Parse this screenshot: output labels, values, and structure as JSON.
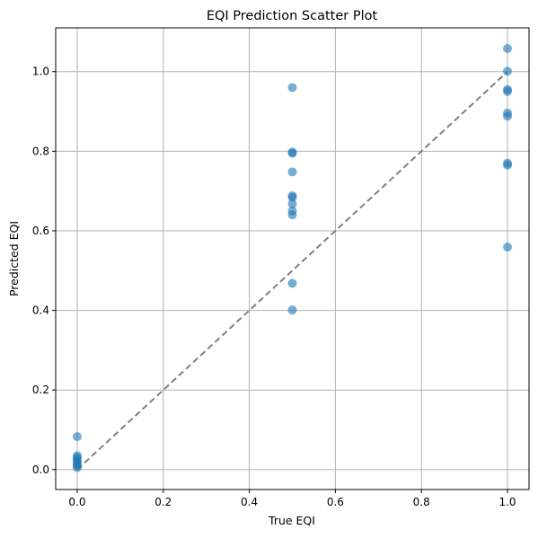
{
  "chart_data": {
    "type": "scatter",
    "title": "EQI Prediction Scatter Plot",
    "xlabel": "True EQI",
    "ylabel": "Predicted EQI",
    "xlim": [
      -0.05,
      1.05
    ],
    "ylim": [
      -0.05,
      1.11
    ],
    "xticks": [
      0.0,
      0.2,
      0.4,
      0.6,
      0.8,
      1.0
    ],
    "yticks": [
      0.0,
      0.2,
      0.4,
      0.6,
      0.8,
      1.0
    ],
    "xtick_labels": [
      "0.0",
      "0.2",
      "0.4",
      "0.6",
      "0.8",
      "1.0"
    ],
    "ytick_labels": [
      "0.0",
      "0.2",
      "0.4",
      "0.6",
      "0.8",
      "1.0"
    ],
    "grid": true,
    "point_color": "#1f77b4",
    "reference_line": {
      "x": [
        0,
        1
      ],
      "y": [
        0,
        1
      ],
      "color": "#808080",
      "style": "dashed"
    },
    "points": [
      {
        "x": 0.0,
        "y": 0.083
      },
      {
        "x": 0.0,
        "y": 0.035
      },
      {
        "x": 0.0,
        "y": 0.03
      },
      {
        "x": 0.0,
        "y": 0.025
      },
      {
        "x": 0.0,
        "y": 0.02
      },
      {
        "x": 0.0,
        "y": 0.015
      },
      {
        "x": 0.0,
        "y": 0.01
      },
      {
        "x": 0.0,
        "y": 0.005
      },
      {
        "x": 0.5,
        "y": 0.96
      },
      {
        "x": 0.5,
        "y": 0.798
      },
      {
        "x": 0.5,
        "y": 0.795
      },
      {
        "x": 0.5,
        "y": 0.748
      },
      {
        "x": 0.5,
        "y": 0.688
      },
      {
        "x": 0.5,
        "y": 0.684
      },
      {
        "x": 0.5,
        "y": 0.668
      },
      {
        "x": 0.5,
        "y": 0.65
      },
      {
        "x": 0.5,
        "y": 0.64
      },
      {
        "x": 0.5,
        "y": 0.468
      },
      {
        "x": 0.5,
        "y": 0.401
      },
      {
        "x": 1.0,
        "y": 1.058
      },
      {
        "x": 1.0,
        "y": 1.001
      },
      {
        "x": 1.0,
        "y": 0.955
      },
      {
        "x": 1.0,
        "y": 0.95
      },
      {
        "x": 1.0,
        "y": 0.896
      },
      {
        "x": 1.0,
        "y": 0.888
      },
      {
        "x": 1.0,
        "y": 0.77
      },
      {
        "x": 1.0,
        "y": 0.765
      },
      {
        "x": 1.0,
        "y": 0.559
      }
    ]
  }
}
